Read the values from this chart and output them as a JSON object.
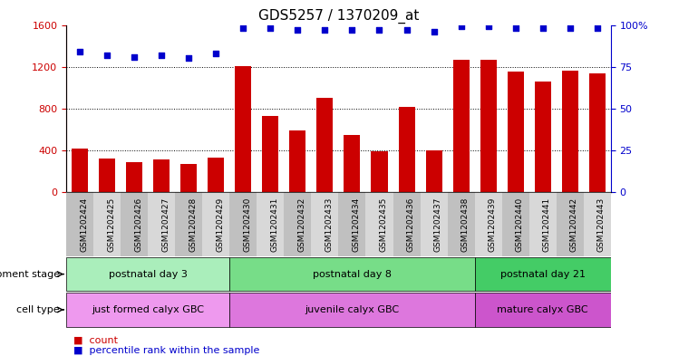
{
  "title": "GDS5257 / 1370209_at",
  "samples": [
    "GSM1202424",
    "GSM1202425",
    "GSM1202426",
    "GSM1202427",
    "GSM1202428",
    "GSM1202429",
    "GSM1202430",
    "GSM1202431",
    "GSM1202432",
    "GSM1202433",
    "GSM1202434",
    "GSM1202435",
    "GSM1202436",
    "GSM1202437",
    "GSM1202438",
    "GSM1202439",
    "GSM1202440",
    "GSM1202441",
    "GSM1202442",
    "GSM1202443"
  ],
  "counts": [
    420,
    320,
    290,
    310,
    270,
    330,
    1210,
    730,
    590,
    900,
    550,
    390,
    820,
    400,
    1270,
    1270,
    1150,
    1060,
    1160,
    1140
  ],
  "percentile_ranks": [
    84,
    82,
    81,
    82,
    80,
    83,
    98,
    98,
    97,
    97,
    97,
    97,
    97,
    96,
    99,
    99,
    98,
    98,
    98,
    98
  ],
  "bar_color": "#cc0000",
  "scatter_color": "#0000cc",
  "ylim_left": [
    0,
    1600
  ],
  "ylim_right": [
    0,
    100
  ],
  "yticks_left": [
    0,
    400,
    800,
    1200,
    1600
  ],
  "yticks_right": [
    0,
    25,
    50,
    75,
    100
  ],
  "grid_yticks": [
    400,
    800,
    1200
  ],
  "background_color": "#ffffff",
  "dev_stage_groups": [
    {
      "label": "postnatal day 3",
      "start": 0,
      "end": 6,
      "color": "#aaeebb"
    },
    {
      "label": "postnatal day 8",
      "start": 6,
      "end": 15,
      "color": "#77dd88"
    },
    {
      "label": "postnatal day 21",
      "start": 15,
      "end": 20,
      "color": "#44cc66"
    }
  ],
  "cell_type_groups": [
    {
      "label": "just formed calyx GBC",
      "start": 0,
      "end": 6,
      "color": "#ee99ee"
    },
    {
      "label": "juvenile calyx GBC",
      "start": 6,
      "end": 15,
      "color": "#dd77dd"
    },
    {
      "label": "mature calyx GBC",
      "start": 15,
      "end": 20,
      "color": "#cc55cc"
    }
  ],
  "dev_stage_label": "development stage",
  "cell_type_label": "cell type",
  "legend_count_label": "count",
  "legend_pct_label": "percentile rank within the sample",
  "bar_color_legend": "#cc0000",
  "scatter_color_legend": "#0000cc"
}
